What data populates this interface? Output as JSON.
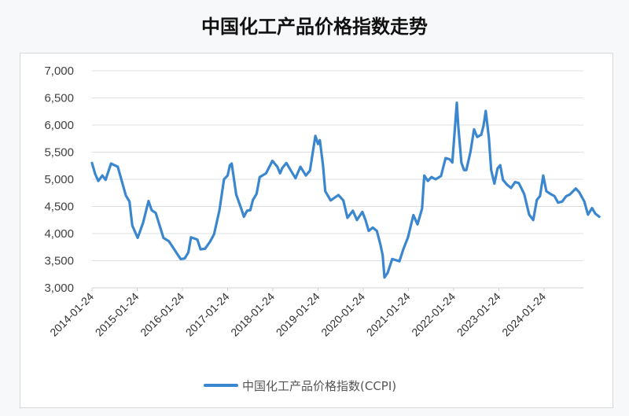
{
  "title": "中国化工产品价格指数走势",
  "chart_data": {
    "type": "line",
    "title": "中国化工产品价格指数走势",
    "xlabel": "",
    "ylabel": "",
    "ylim": [
      3000,
      7000
    ],
    "yticks": [
      3000,
      3500,
      4000,
      4500,
      5000,
      5500,
      6000,
      6500,
      7000
    ],
    "ytick_labels": [
      "3,000",
      "3,500",
      "4,000",
      "4,500",
      "5,000",
      "5,500",
      "6,000",
      "6,500",
      "7,000"
    ],
    "xticks": [
      "2014-01-24",
      "2015-01-24",
      "2016-01-24",
      "2017-01-24",
      "2018-01-24",
      "2019-01-24",
      "2020-01-24",
      "2021-01-24",
      "2022-01-24",
      "2023-01-24",
      "2024-01-24"
    ],
    "grid": "horizontal",
    "legend_position": "bottom",
    "series": [
      {
        "name": "中国化工产品价格指数(CCPI)",
        "color": "#3b87cf",
        "x_unit": "years since 2014-01-24",
        "points": [
          [
            0.0,
            5300
          ],
          [
            0.07,
            5100
          ],
          [
            0.14,
            4970
          ],
          [
            0.23,
            5070
          ],
          [
            0.3,
            4990
          ],
          [
            0.42,
            5290
          ],
          [
            0.57,
            5230
          ],
          [
            0.75,
            4700
          ],
          [
            0.83,
            4590
          ],
          [
            0.89,
            4150
          ],
          [
            1.01,
            3920
          ],
          [
            1.13,
            4200
          ],
          [
            1.25,
            4600
          ],
          [
            1.32,
            4430
          ],
          [
            1.41,
            4380
          ],
          [
            1.58,
            3920
          ],
          [
            1.7,
            3860
          ],
          [
            1.96,
            3530
          ],
          [
            2.05,
            3540
          ],
          [
            2.13,
            3650
          ],
          [
            2.19,
            3930
          ],
          [
            2.33,
            3890
          ],
          [
            2.4,
            3710
          ],
          [
            2.5,
            3720
          ],
          [
            2.61,
            3850
          ],
          [
            2.7,
            3990
          ],
          [
            2.82,
            4430
          ],
          [
            2.92,
            5000
          ],
          [
            3.0,
            5070
          ],
          [
            3.05,
            5260
          ],
          [
            3.09,
            5290
          ],
          [
            3.19,
            4720
          ],
          [
            3.3,
            4460
          ],
          [
            3.36,
            4310
          ],
          [
            3.43,
            4420
          ],
          [
            3.5,
            4430
          ],
          [
            3.56,
            4620
          ],
          [
            3.64,
            4730
          ],
          [
            3.71,
            5040
          ],
          [
            3.85,
            5110
          ],
          [
            3.96,
            5290
          ],
          [
            3.99,
            5340
          ],
          [
            4.1,
            5230
          ],
          [
            4.16,
            5110
          ],
          [
            4.21,
            5210
          ],
          [
            4.3,
            5300
          ],
          [
            4.4,
            5160
          ],
          [
            4.5,
            5020
          ],
          [
            4.61,
            5230
          ],
          [
            4.73,
            5070
          ],
          [
            4.82,
            5160
          ],
          [
            4.94,
            5800
          ],
          [
            5.0,
            5650
          ],
          [
            5.04,
            5720
          ],
          [
            5.11,
            5260
          ],
          [
            5.16,
            4780
          ],
          [
            5.28,
            4610
          ],
          [
            5.45,
            4710
          ],
          [
            5.56,
            4610
          ],
          [
            5.65,
            4290
          ],
          [
            5.77,
            4420
          ],
          [
            5.86,
            4250
          ],
          [
            5.98,
            4400
          ],
          [
            6.05,
            4250
          ],
          [
            6.12,
            4050
          ],
          [
            6.21,
            4110
          ],
          [
            6.3,
            4050
          ],
          [
            6.38,
            3800
          ],
          [
            6.43,
            3600
          ],
          [
            6.47,
            3190
          ],
          [
            6.54,
            3280
          ],
          [
            6.64,
            3530
          ],
          [
            6.8,
            3490
          ],
          [
            6.89,
            3720
          ],
          [
            6.99,
            3930
          ],
          [
            7.11,
            4340
          ],
          [
            7.2,
            4170
          ],
          [
            7.3,
            4460
          ],
          [
            7.35,
            5070
          ],
          [
            7.43,
            4970
          ],
          [
            7.51,
            5040
          ],
          [
            7.6,
            5000
          ],
          [
            7.72,
            5060
          ],
          [
            7.82,
            5390
          ],
          [
            7.91,
            5370
          ],
          [
            7.97,
            5310
          ],
          [
            8.02,
            5850
          ],
          [
            8.07,
            6410
          ],
          [
            8.1,
            5990
          ],
          [
            8.17,
            5310
          ],
          [
            8.23,
            5170
          ],
          [
            8.28,
            5170
          ],
          [
            8.37,
            5500
          ],
          [
            8.45,
            5920
          ],
          [
            8.52,
            5780
          ],
          [
            8.61,
            5820
          ],
          [
            8.66,
            5990
          ],
          [
            8.71,
            6260
          ],
          [
            8.78,
            5760
          ],
          [
            8.83,
            5170
          ],
          [
            8.9,
            4920
          ],
          [
            8.97,
            5200
          ],
          [
            9.03,
            5260
          ],
          [
            9.09,
            4990
          ],
          [
            9.18,
            4900
          ],
          [
            9.27,
            4840
          ],
          [
            9.36,
            4950
          ],
          [
            9.44,
            4930
          ],
          [
            9.56,
            4730
          ],
          [
            9.67,
            4350
          ],
          [
            9.76,
            4250
          ],
          [
            9.84,
            4620
          ],
          [
            9.91,
            4690
          ],
          [
            9.98,
            5070
          ],
          [
            10.05,
            4780
          ],
          [
            10.14,
            4730
          ],
          [
            10.23,
            4690
          ],
          [
            10.31,
            4570
          ],
          [
            10.4,
            4590
          ],
          [
            10.49,
            4690
          ],
          [
            10.57,
            4720
          ],
          [
            10.7,
            4830
          ],
          [
            10.78,
            4760
          ],
          [
            10.89,
            4590
          ],
          [
            10.97,
            4350
          ],
          [
            11.06,
            4470
          ],
          [
            11.13,
            4370
          ],
          [
            11.22,
            4310
          ]
        ]
      }
    ]
  },
  "legend": {
    "label": "中国化工产品价格指数(CCPI)"
  }
}
